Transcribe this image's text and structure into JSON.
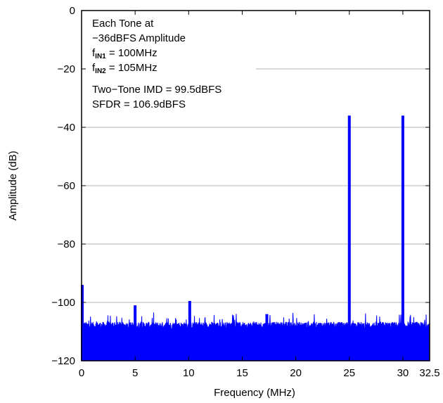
{
  "chart_data": {
    "type": "line",
    "title": "",
    "xlabel": "Frequency (MHz)",
    "ylabel": "Amplitude (dB)",
    "xlim": [
      0,
      32.5
    ],
    "ylim": [
      -120,
      0
    ],
    "x_ticks": [
      0,
      5,
      10,
      15,
      20,
      25,
      30,
      32.5
    ],
    "x_tick_labels": [
      "0",
      "5",
      "10",
      "15",
      "20",
      "25",
      "30",
      "32.5"
    ],
    "y_ticks": [
      0,
      -20,
      -40,
      -60,
      -80,
      -100,
      -120
    ],
    "y_tick_labels": [
      "0",
      "−20",
      "−40",
      "−60",
      "−80",
      "−100",
      "−120"
    ],
    "grid": true,
    "series_color": "#0000ff",
    "noise_floor_db": -108,
    "spurs": [
      {
        "x": 0.0,
        "y": -94
      },
      {
        "x": 5.0,
        "y": -101
      },
      {
        "x": 10.1,
        "y": -99.5
      },
      {
        "x": 17.3,
        "y": -104
      },
      {
        "x": 25.0,
        "y": -36
      },
      {
        "x": 30.0,
        "y": -36
      }
    ],
    "annotation": {
      "line1": "Each Tone at",
      "line2": "−36dBFS Amplitude",
      "fin1_f": "f",
      "fin1_sub": "IN1",
      "fin1_rest": " = 100MHz",
      "fin2_f": "f",
      "fin2_sub": "IN2",
      "fin2_rest": " = 105MHz",
      "line5": "Two−Tone IMD = 99.5dBFS",
      "line6": "SFDR = 106.9dBFS"
    }
  }
}
